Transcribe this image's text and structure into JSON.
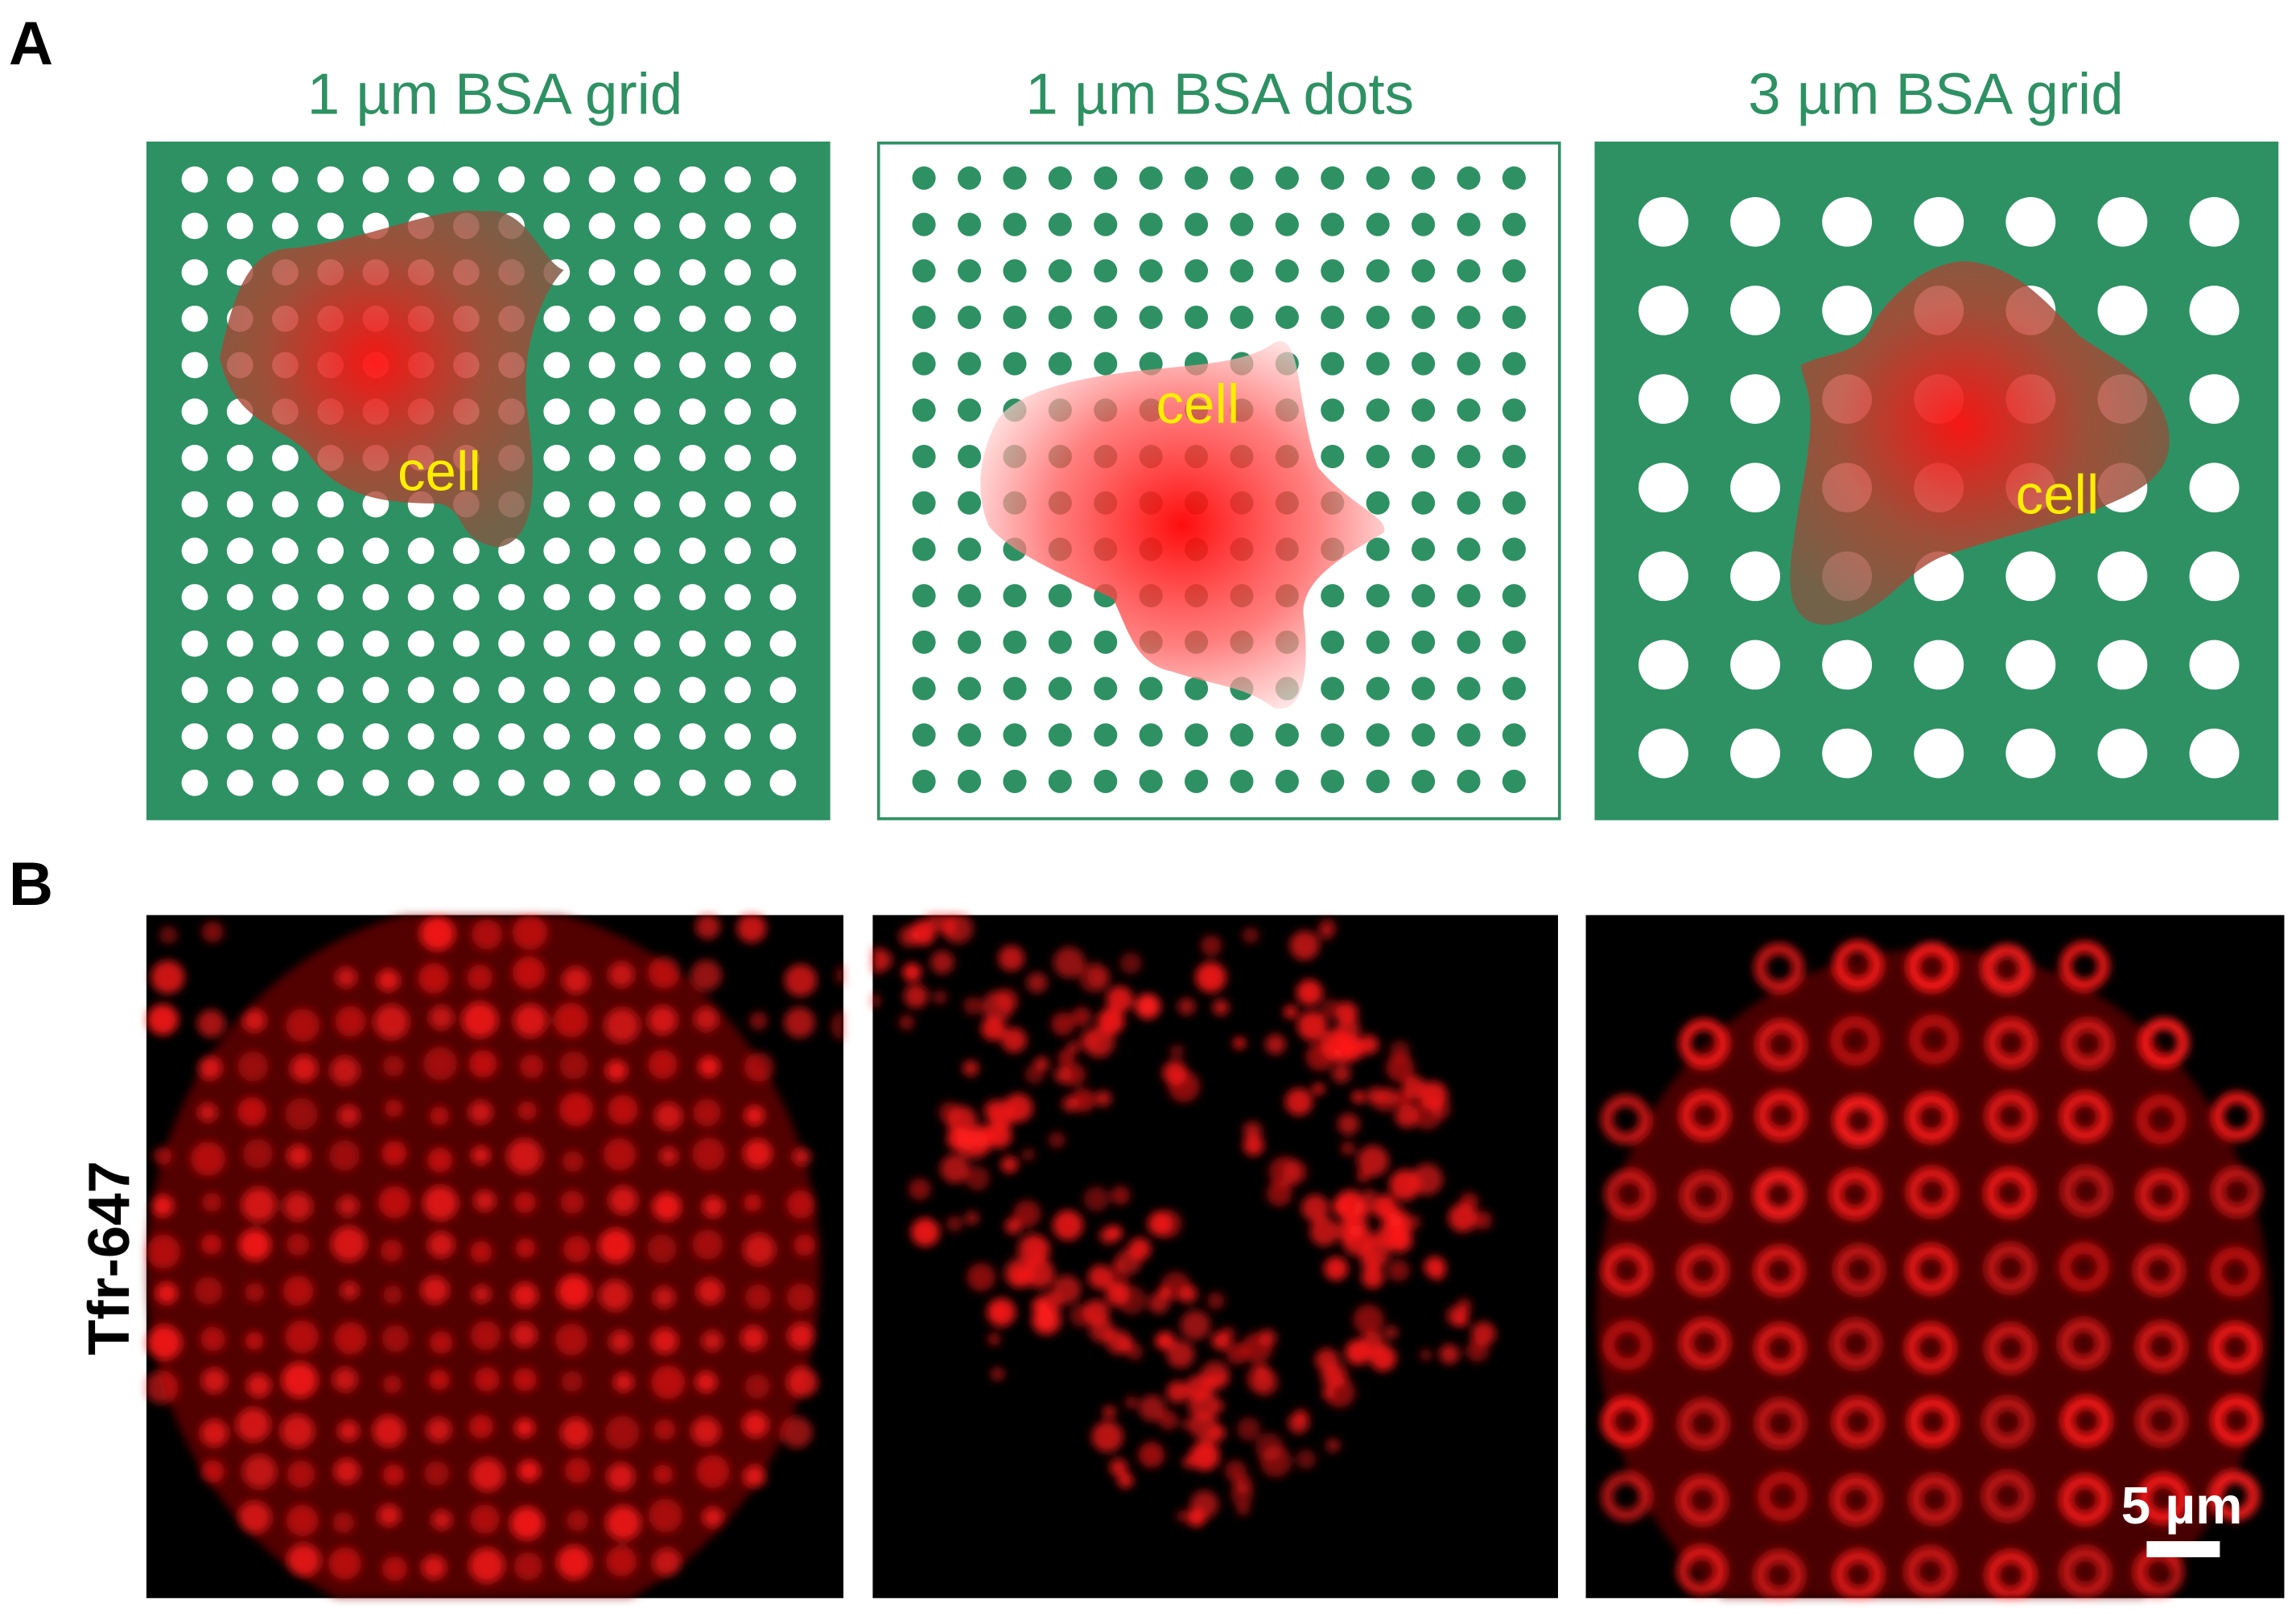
{
  "panel_a": {
    "label": "A",
    "panels": [
      {
        "title": "1 µm BSA grid",
        "cell_label": "cell"
      },
      {
        "title": "1 µm BSA dots",
        "cell_label": "cell"
      },
      {
        "title": "3 µm BSA grid",
        "cell_label": "cell"
      }
    ]
  },
  "panel_b": {
    "label": "B",
    "channel_label": "Tfr-647",
    "scale_bar": "5 µm"
  }
}
